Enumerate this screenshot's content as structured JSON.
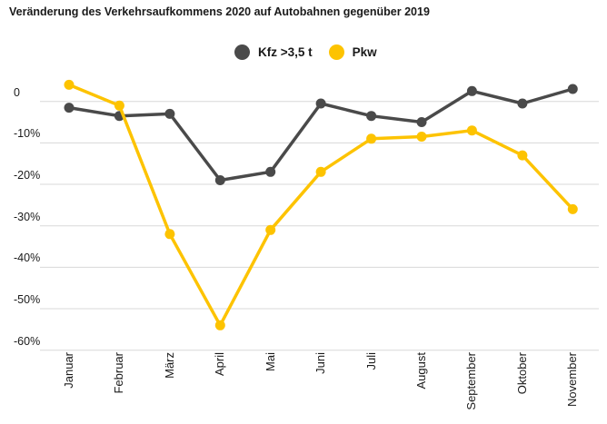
{
  "chart_data": {
    "type": "line",
    "title": "Veränderung des Verkehrsaufkommens 2020 auf Autobahnen gegenüber 2019",
    "xlabel": "",
    "ylabel": "",
    "categories": [
      "Januar",
      "Februar",
      "März",
      "April",
      "Mai",
      "Juni",
      "Juli",
      "August",
      "September",
      "Oktober",
      "November"
    ],
    "series": [
      {
        "name": "Kfz >3,5 t",
        "color": "#4a4a4a",
        "values": [
          -1.5,
          -3.5,
          -3,
          -19,
          -17,
          -0.5,
          -3.5,
          -5,
          2.5,
          -0.5,
          3
        ]
      },
      {
        "name": "Pkw",
        "color": "#fdc300",
        "values": [
          4,
          -1,
          -32,
          -54,
          -31,
          -17,
          -9,
          -8.5,
          -7,
          -13,
          -26
        ]
      }
    ],
    "yticks": [
      {
        "label": "0",
        "value": 0
      },
      {
        "label": "-10%",
        "value": -10
      },
      {
        "label": "-20%",
        "value": -20
      },
      {
        "label": "-30%",
        "value": -30
      },
      {
        "label": "-40%",
        "value": -40
      },
      {
        "label": "-50%",
        "value": -50
      },
      {
        "label": "-60%",
        "value": -60
      }
    ],
    "ylim": [
      -60,
      5
    ],
    "grid": true,
    "legend_position": "top-center",
    "x_tick_rotation_deg": 90,
    "gridline_color": "#d8d8d8",
    "background_color": "#ffffff"
  }
}
